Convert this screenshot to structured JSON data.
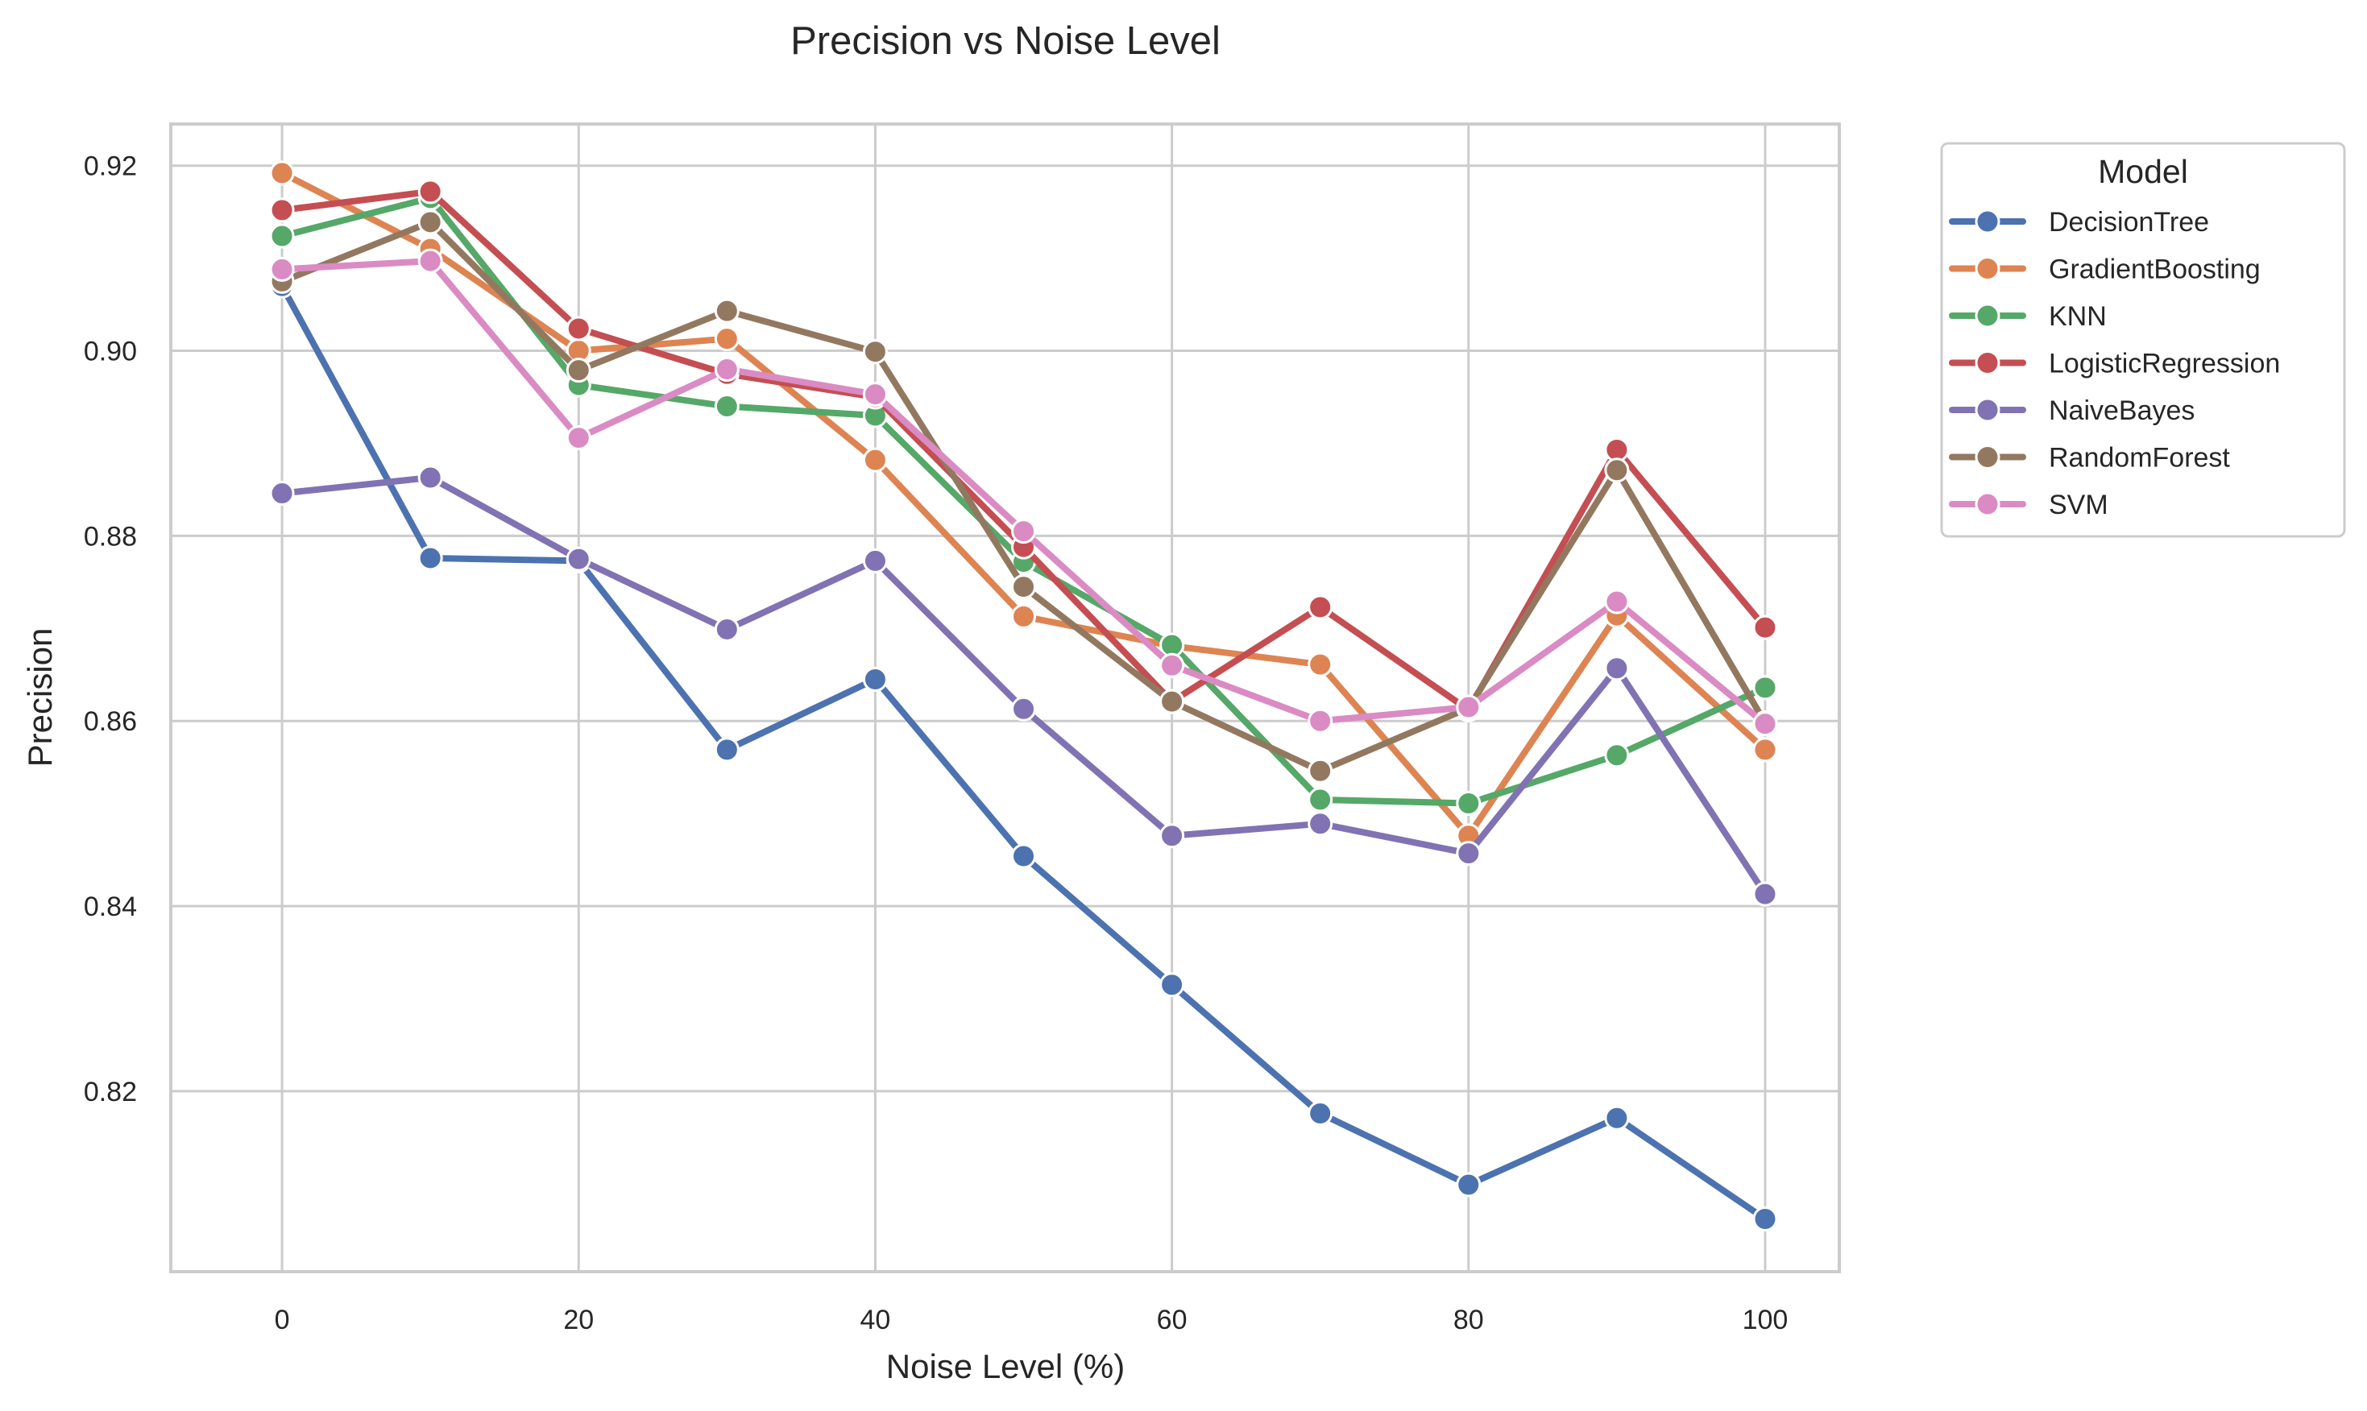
{
  "chart_data": {
    "type": "line",
    "title": "Precision vs Noise Level",
    "xlabel": "Noise Level (%)",
    "ylabel": "Precision",
    "x": [
      0,
      10,
      20,
      30,
      40,
      50,
      60,
      70,
      80,
      90,
      100
    ],
    "xlim": [
      -7.5,
      105
    ],
    "ylim": [
      0.8005,
      0.9245
    ],
    "x_ticks": [
      0,
      20,
      40,
      60,
      80,
      100
    ],
    "y_ticks": [
      0.82,
      0.84,
      0.86,
      0.88,
      0.9,
      0.92
    ],
    "x_tick_labels": [
      "0",
      "20",
      "40",
      "60",
      "80",
      "100"
    ],
    "y_tick_labels": [
      "0.82",
      "0.84",
      "0.86",
      "0.88",
      "0.90",
      "0.92"
    ],
    "grid": true,
    "legend": {
      "title": "Model",
      "placement": "outside-upper-right"
    },
    "series": [
      {
        "name": "DecisionTree",
        "color": "#4c72b0",
        "values": [
          0.907,
          0.8776,
          0.8773,
          0.8569,
          0.8645,
          0.8454,
          0.8315,
          0.8176,
          0.8099,
          0.8171,
          0.8062
        ]
      },
      {
        "name": "GradientBoosting",
        "color": "#dd8452",
        "values": [
          0.9192,
          0.911,
          0.9,
          0.9013,
          0.8882,
          0.8713,
          0.8681,
          0.8661,
          0.8476,
          0.8714,
          0.8569
        ]
      },
      {
        "name": "KNN",
        "color": "#55a868",
        "values": [
          0.9124,
          0.9165,
          0.8963,
          0.894,
          0.893,
          0.8772,
          0.8682,
          0.8515,
          0.8511,
          0.8563,
          0.8636
        ]
      },
      {
        "name": "LogisticRegression",
        "color": "#c44e52",
        "values": [
          0.9152,
          0.9172,
          0.9024,
          0.8975,
          0.895,
          0.8788,
          0.8621,
          0.8723,
          0.8612,
          0.8893,
          0.8701
        ]
      },
      {
        "name": "NaiveBayes",
        "color": "#8172b3",
        "values": [
          0.8846,
          0.8863,
          0.8775,
          0.8699,
          0.8773,
          0.8613,
          0.8476,
          0.8489,
          0.8457,
          0.8657,
          0.8413
        ]
      },
      {
        "name": "RandomForest",
        "color": "#937860",
        "values": [
          0.9075,
          0.9139,
          0.8979,
          0.9043,
          0.8999,
          0.8745,
          0.8621,
          0.8546,
          0.8614,
          0.8871,
          0.8598
        ]
      },
      {
        "name": "SVM",
        "color": "#da8bc3",
        "values": [
          0.9088,
          0.9097,
          0.8906,
          0.898,
          0.8953,
          0.8805,
          0.866,
          0.86,
          0.8615,
          0.8729,
          0.8597
        ]
      }
    ]
  }
}
